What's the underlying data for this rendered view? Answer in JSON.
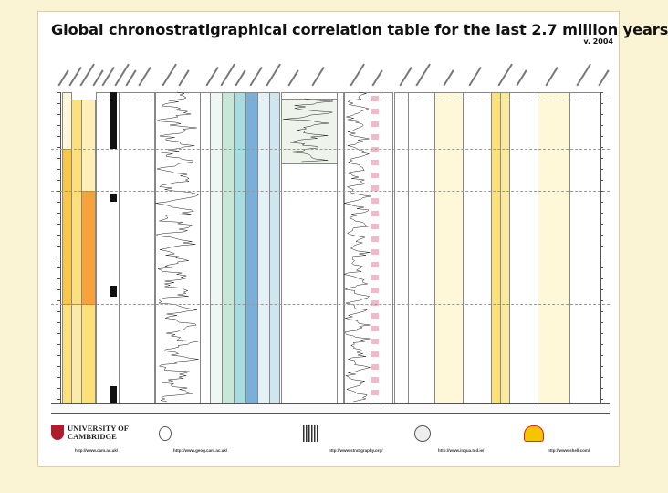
{
  "title": "Global chronostratigraphical correlation table for the last 2.7 million years",
  "version": "v. 2004",
  "footer": {
    "cambridge_line1": "UNIVERSITY OF",
    "cambridge_line2": "CAMBRIDGE",
    "cambridge_url": "http://www.cam.ac.uk/",
    "geog_url": "http://www.geog.cam.ac.uk/",
    "strat_url": "http://www.stratigraphy.org/",
    "inqua_url": "http://www.inqua.tcd.ie/",
    "shell_url": "http://www.shell.com/"
  },
  "colors": {
    "background": "#fbf4d4",
    "quaternary": "#f9c64a",
    "pleistocene": "#fde07a",
    "marine": "#d6eef2",
    "blue": "#7ab0d8",
    "pink": "#f4b8c8"
  }
}
